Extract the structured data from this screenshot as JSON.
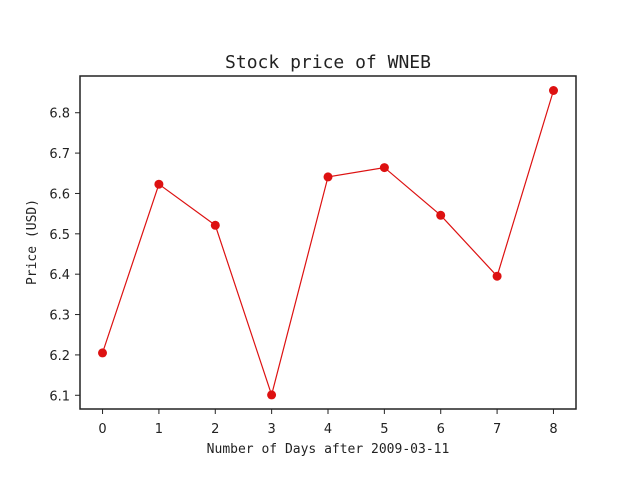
{
  "chart_data": {
    "type": "line",
    "title": "Stock price of WNEB",
    "xlabel": "Number of Days after 2009-03-11",
    "ylabel": "Price (USD)",
    "x": [
      0,
      1,
      2,
      3,
      4,
      5,
      6,
      7,
      8
    ],
    "series": [
      {
        "values": [
          6.205,
          6.623,
          6.521,
          6.101,
          6.641,
          6.664,
          6.546,
          6.395,
          6.855
        ]
      }
    ],
    "x_ticks": [
      "0",
      "1",
      "2",
      "3",
      "4",
      "5",
      "6",
      "7",
      "8"
    ],
    "y_ticks": [
      "6.1",
      "6.2",
      "6.3",
      "6.4",
      "6.5",
      "6.6",
      "6.7",
      "6.8"
    ],
    "xlim": [
      -0.4,
      8.4
    ],
    "ylim": [
      6.066,
      6.891
    ],
    "grid": false,
    "line_color": "#dd1111",
    "marker": "circle"
  }
}
